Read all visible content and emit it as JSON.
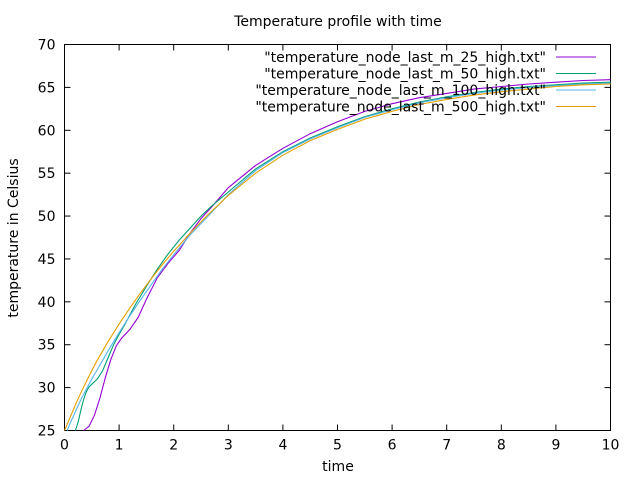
{
  "chart_data": {
    "type": "line",
    "title": "Temperature profile with time",
    "xlabel": "time",
    "ylabel": "temperature in Celsius",
    "xlim": [
      0,
      10
    ],
    "ylim": [
      25,
      70
    ],
    "xticks": [
      "0",
      "1",
      "2",
      "3",
      "4",
      "5",
      "6",
      "7",
      "8",
      "9",
      "10"
    ],
    "yticks": [
      "25",
      "30",
      "35",
      "40",
      "45",
      "50",
      "55",
      "60",
      "65",
      "70"
    ],
    "grid": false,
    "legend_position": "top-right",
    "series": [
      {
        "name": "\"temperature_node_last_m_25_high.txt\"",
        "color": "#9400d3",
        "x": [
          0.35,
          0.45,
          0.55,
          0.65,
          0.75,
          0.85,
          0.95,
          1.05,
          1.2,
          1.35,
          1.5,
          1.7,
          1.9,
          2.1,
          2.3,
          2.5,
          2.7,
          3.0,
          3.5,
          4.0,
          4.5,
          5.0,
          5.5,
          6.0,
          6.5,
          7.0,
          7.5,
          8.0,
          8.5,
          9.0,
          9.5,
          10.0
        ],
        "values": [
          25.0,
          25.5,
          26.8,
          28.8,
          31.2,
          33.3,
          34.9,
          35.8,
          36.8,
          38.2,
          40.3,
          42.8,
          44.5,
          46.0,
          48.0,
          49.7,
          51.1,
          53.3,
          55.9,
          57.9,
          59.6,
          61.0,
          62.2,
          63.1,
          63.8,
          64.3,
          64.8,
          65.1,
          65.4,
          65.6,
          65.8,
          65.9
        ]
      },
      {
        "name": "\"temperature_node_last_m_50_high.txt\"",
        "color": "#009e73",
        "x": [
          0.2,
          0.25,
          0.3,
          0.35,
          0.4,
          0.45,
          0.5,
          0.6,
          0.7,
          0.8,
          0.9,
          1.0,
          1.1,
          1.2,
          1.3,
          1.5,
          1.7,
          1.9,
          2.1,
          2.3,
          2.5,
          2.7,
          3.0,
          3.5,
          4.0,
          4.5,
          5.0,
          5.5,
          6.0,
          6.5,
          7.0,
          7.5,
          8.0,
          8.5,
          9.0,
          9.5,
          10.0
        ],
        "values": [
          25.0,
          26.0,
          27.4,
          28.6,
          29.5,
          30.1,
          30.4,
          31.0,
          32.0,
          33.5,
          35.0,
          36.2,
          37.3,
          38.5,
          39.7,
          41.8,
          43.8,
          45.6,
          47.2,
          48.6,
          50.0,
          51.2,
          52.8,
          55.5,
          57.5,
          59.1,
          60.4,
          61.6,
          62.5,
          63.3,
          63.9,
          64.4,
          64.8,
          65.1,
          65.3,
          65.5,
          65.6
        ]
      },
      {
        "name": "\"temperature_node_last_m_100_high.txt\"",
        "color": "#56b4e9",
        "x": [
          0.05,
          0.1,
          0.2,
          0.3,
          0.4,
          0.5,
          0.6,
          0.8,
          1.0,
          1.2,
          1.4,
          1.6,
          1.8,
          2.0,
          2.3,
          2.6,
          3.0,
          3.5,
          4.0,
          4.5,
          5.0,
          5.5,
          6.0,
          6.5,
          7.0,
          7.5,
          8.0,
          8.5,
          9.0,
          9.5,
          10.0
        ],
        "values": [
          25.0,
          25.8,
          27.2,
          28.6,
          29.8,
          31.0,
          32.1,
          34.3,
          36.4,
          38.4,
          40.3,
          42.1,
          43.9,
          45.5,
          47.8,
          49.8,
          52.5,
          55.3,
          57.4,
          59.0,
          60.3,
          61.5,
          62.4,
          63.2,
          63.8,
          64.3,
          64.7,
          65.0,
          65.2,
          65.4,
          65.5
        ]
      },
      {
        "name": "\"temperature_node_last_m_500_high.txt\"",
        "color": "#e69f00",
        "x": [
          0.0,
          0.1,
          0.2,
          0.3,
          0.4,
          0.5,
          0.6,
          0.8,
          1.0,
          1.2,
          1.4,
          1.6,
          1.8,
          2.0,
          2.3,
          2.6,
          3.0,
          3.5,
          4.0,
          4.5,
          5.0,
          5.5,
          6.0,
          6.5,
          7.0,
          7.5,
          8.0,
          8.5,
          9.0,
          9.5,
          10.0
        ],
        "values": [
          25.0,
          26.5,
          28.0,
          29.4,
          30.7,
          32.0,
          33.2,
          35.4,
          37.4,
          39.3,
          41.1,
          42.8,
          44.4,
          45.9,
          48.0,
          50.0,
          52.4,
          55.0,
          57.1,
          58.8,
          60.1,
          61.3,
          62.2,
          63.0,
          63.6,
          64.1,
          64.5,
          64.8,
          65.1,
          65.3,
          65.4
        ]
      }
    ]
  }
}
